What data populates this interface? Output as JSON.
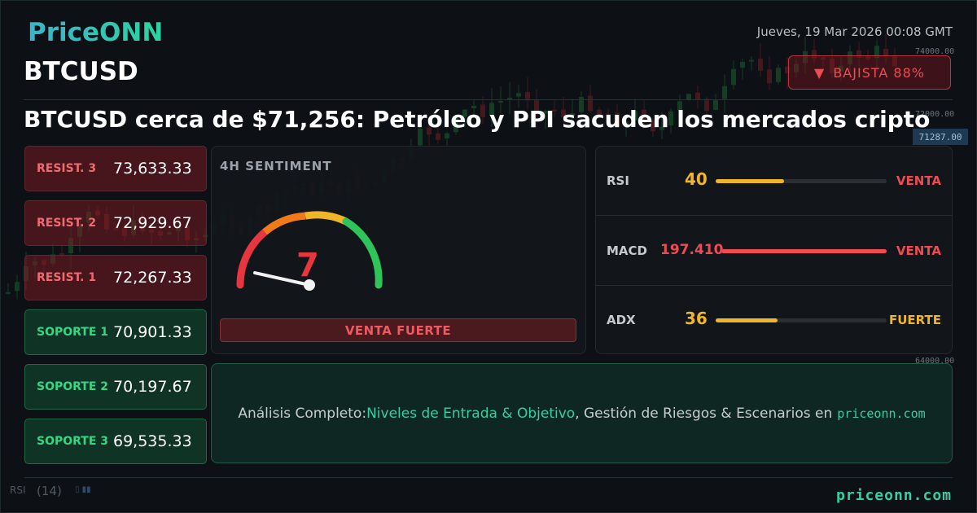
{
  "brand": {
    "logo": "PriceONN",
    "footer": "priceonn.com"
  },
  "header": {
    "date": "Jueves, 19 Mar 2026 00:08 GMT",
    "symbol": "BTCUSD",
    "trend": {
      "label": "BAJISTA 88%",
      "icon": "down-triangle-icon",
      "color": "#ef4b52"
    },
    "headline": "BTCUSD cerca de $71,256: Petróleo y PPI sacuden los mercados cripto"
  },
  "levels": [
    {
      "type": "resistance",
      "label": "RESIST. 3",
      "value": "73,633.33"
    },
    {
      "type": "resistance",
      "label": "RESIST. 2",
      "value": "72,929.67"
    },
    {
      "type": "resistance",
      "label": "RESIST. 1",
      "value": "72,267.33"
    },
    {
      "type": "support",
      "label": "SOPORTE 1",
      "value": "70,901.33"
    },
    {
      "type": "support",
      "label": "SOPORTE 2",
      "value": "70,197.67"
    },
    {
      "type": "support",
      "label": "SOPORTE 3",
      "value": "69,535.33"
    }
  ],
  "sentiment": {
    "title": "4H SENTIMENT",
    "score": 7,
    "scale_max": 100,
    "label": "VENTA FUERTE"
  },
  "indicators": [
    {
      "name": "RSI",
      "value": "40",
      "level": 0.4,
      "value_color": "#f0b62a",
      "bar_color": "#f0b62a",
      "signal": "VENTA",
      "signal_color": "#ef4b52"
    },
    {
      "name": "MACD",
      "value": "197.410",
      "level": 1.0,
      "value_color": "#ef4b52",
      "bar_color": "#ef4b52",
      "signal": "VENTA",
      "signal_color": "#ef4b52"
    },
    {
      "name": "ADX",
      "value": "36",
      "level": 0.36,
      "value_color": "#f0b62a",
      "bar_color": "#f0b62a",
      "signal": "FUERTE",
      "signal_color": "#f0b62a"
    }
  ],
  "cta": {
    "prefix": "Análisis Completo: ",
    "highlight": "Niveles de Entrada & Objetivo",
    "suffix": ", Gestión de Riesgos & Escenarios en",
    "site": "priceonn.com"
  },
  "background_chart": {
    "price_labels": [
      "74000.00",
      "72000.00",
      "71287.00",
      "64000.00"
    ],
    "indicator_label": "RSI",
    "indicator_period": "(14)"
  }
}
